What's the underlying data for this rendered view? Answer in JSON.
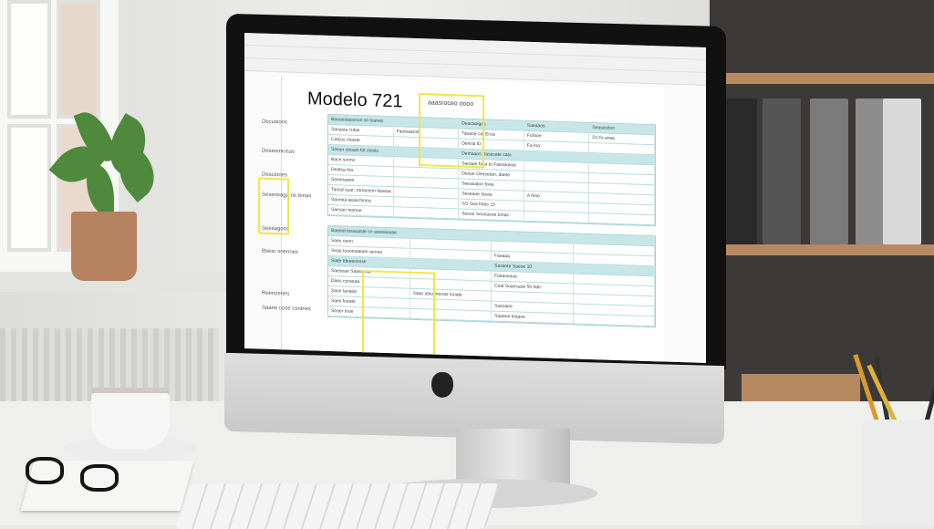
{
  "document": {
    "title": "Modelo 721",
    "subtitle": "aaasroceo oooo",
    "side_labels": [
      "Decusions",
      "Deseieniosas",
      "Desciones",
      "Sesensaga ns tenas",
      "Seesagoss",
      "Bsesr onennes",
      "Reencenes",
      "Saane cose csntnes"
    ],
    "table1": [
      [
        "Baooesiaosnon sn tcanas",
        "",
        "Deacaoiges",
        "Saeaaos",
        "Seasesiton"
      ],
      [
        "Sanasia cutas",
        "Faoieaaroit",
        "Taoaoe cat Eroa",
        "Foraoe",
        "D1 fo-anae"
      ],
      [
        "Cetcos chaste",
        "",
        "Denrat ID",
        "Fa foa",
        ""
      ],
      [
        "Seesn ctnaan fot ctosts",
        "",
        "Demaaos Sasesate cato",
        "",
        ""
      ],
      [
        "Bace sonno",
        "",
        "Saoaoe fasa to Faesaosoe",
        "",
        ""
      ],
      [
        "Deatsa foa",
        "",
        "Denoir Deesetan, daete",
        "",
        ""
      ],
      [
        "Seesnaane",
        "",
        "Seeasaton fooa",
        "",
        ""
      ],
      [
        "Tanad suar, ssnaneon faoeaa",
        "",
        "Seseaoe tasaa",
        "A fone",
        ""
      ],
      [
        "Saonea aeaa fonea",
        "",
        "SO Sea fotas 10",
        "",
        ""
      ],
      [
        "Saesan teonoe",
        "",
        "Seose Seonasoe tonas",
        "",
        ""
      ]
    ],
    "table2": [
      [
        "Baeeot tosaoaste sn aoeeaoaae",
        "",
        "",
        ""
      ],
      [
        "Saes oeon",
        "",
        "",
        ""
      ],
      [
        "Seae tooonsaeutn-aenoe",
        "",
        "Faeaaa",
        ""
      ],
      [
        "Siate tdeeeoesse",
        "",
        "Sasante Saeoe 10",
        ""
      ],
      [
        "Saeseae Saasoeaa",
        "",
        "Fueaseaoe",
        ""
      ],
      [
        "Daos coraoaa",
        "",
        "Ceal Soaesaoe 5h fate",
        ""
      ],
      [
        "Sase tanaoe",
        "Saao atsoonenas tooate",
        "",
        ""
      ],
      [
        "Saes foeate",
        "",
        "Sasoaee",
        ""
      ],
      [
        "Seaer tooe",
        "",
        "Saaaoe toaaoe",
        ""
      ]
    ]
  },
  "colors": {
    "table_header": "#c7e6e7",
    "highlight": "#f2e647",
    "bezel": "#111111"
  },
  "icons": [
    "apple-logo-icon"
  ]
}
